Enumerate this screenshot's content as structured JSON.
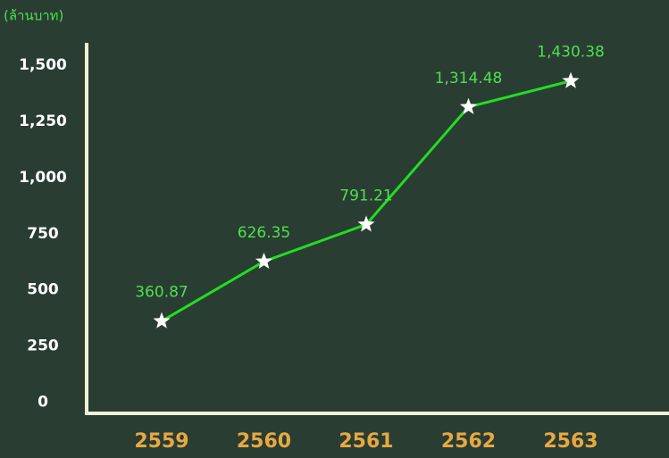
{
  "chart_data": {
    "type": "line",
    "y_label": "(ล้านบาท)",
    "categories": [
      "2559",
      "2560",
      "2561",
      "2562",
      "2563"
    ],
    "series": [
      {
        "name": null,
        "color": "#22dd22",
        "values": [
          360.87,
          626.35,
          791.21,
          1314.48,
          1430.38
        ],
        "value_labels": [
          "360.87",
          "626.35",
          "791.21",
          "1,314.48",
          "1,430.38"
        ]
      }
    ],
    "ylim": [
      -50,
      1600
    ],
    "yticks": [
      0,
      250,
      500,
      750,
      {
        "value": 1000,
        "label": "1,000"
      },
      {
        "value": 1250,
        "label": "1,250"
      },
      {
        "value": 1500,
        "label": "1,500"
      }
    ],
    "marker_color": "#ffffff",
    "label_color": "#4ee04e",
    "ytick_color": "#ffffff",
    "xtick_color": "#e8a840",
    "axis_color": "#eef3d6"
  }
}
